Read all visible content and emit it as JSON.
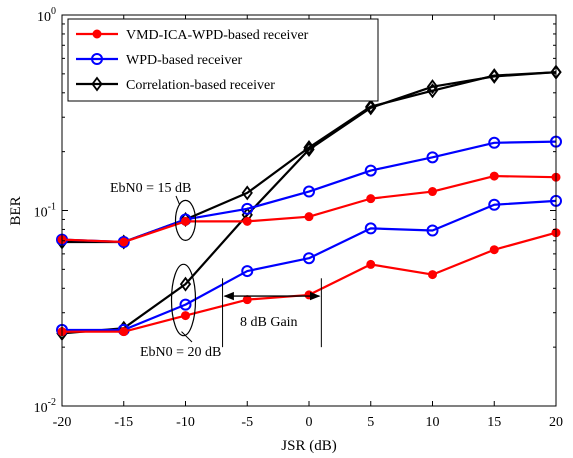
{
  "chart_data": {
    "type": "line",
    "xlabel": "JSR (dB)",
    "ylabel": "BER",
    "xlim": [
      -20,
      20
    ],
    "ylim": [
      0.01,
      1
    ],
    "yscale": "log",
    "x_ticks": [
      -20,
      -15,
      -10,
      -5,
      0,
      5,
      10,
      15,
      20
    ],
    "y_ticks": [
      0.01,
      0.1,
      1
    ],
    "y_tick_labels": [
      {
        "base": "10",
        "exp": "-2"
      },
      {
        "base": "10",
        "exp": "-1"
      },
      {
        "base": "10",
        "exp": "0"
      }
    ],
    "grid": false,
    "legend_position": "top-left",
    "x": [
      -20,
      -15,
      -10,
      -5,
      0,
      5,
      10,
      15,
      20
    ],
    "series": [
      {
        "name": "VMD-ICA-WPD-based receiver",
        "color": "#ff0000",
        "marker": "dot",
        "curves": [
          {
            "condition": "EbN0 = 15 dB",
            "values": [
              0.071,
              0.069,
              0.088,
              0.088,
              0.093,
              0.115,
              0.125,
              0.15,
              0.148
            ]
          },
          {
            "condition": "EbN0 = 20 dB",
            "values": [
              0.024,
              0.024,
              0.029,
              0.035,
              0.037,
              0.053,
              0.047,
              0.063,
              0.077
            ]
          }
        ]
      },
      {
        "name": "WPD-based receiver",
        "color": "#0000ff",
        "marker": "circle",
        "curves": [
          {
            "condition": "EbN0 = 15 dB",
            "values": [
              0.071,
              0.069,
              0.09,
              0.102,
              0.125,
              0.16,
              0.187,
              0.222,
              0.225
            ]
          },
          {
            "condition": "EbN0 = 20 dB",
            "values": [
              0.0245,
              0.0245,
              0.033,
              0.049,
              0.057,
              0.081,
              0.079,
              0.107,
              0.112
            ]
          }
        ]
      },
      {
        "name": "Correlation-based receiver",
        "color": "#000000",
        "marker": "diamond",
        "curves": [
          {
            "condition": "EbN0 = 15 dB",
            "values": [
              0.069,
              0.069,
              0.09,
              0.123,
              0.21,
              0.34,
              0.41,
              0.49,
              0.51
            ]
          },
          {
            "condition": "EbN0 = 20 dB",
            "values": [
              0.0235,
              0.025,
              0.042,
              0.095,
              0.205,
              0.335,
              0.43,
              0.485,
              0.51
            ]
          }
        ]
      }
    ],
    "annotations": [
      {
        "text": "EbN0 = 15 dB"
      },
      {
        "text": "EbN0 = 20 dB"
      },
      {
        "text": "8 dB Gain"
      }
    ]
  }
}
